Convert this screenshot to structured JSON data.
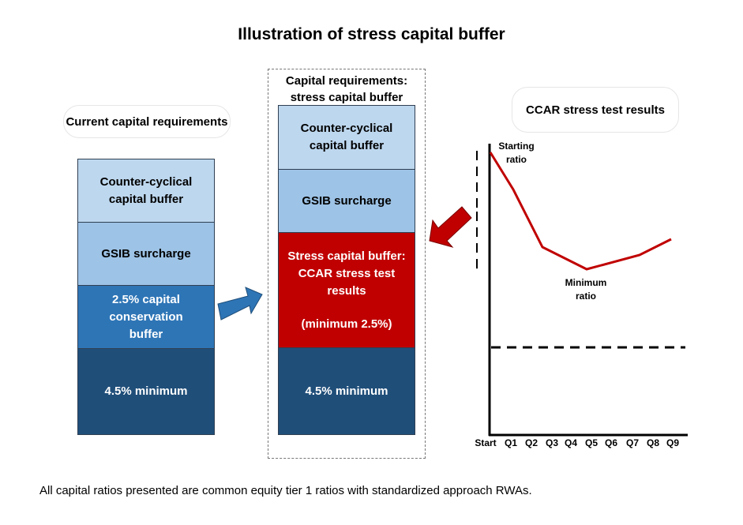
{
  "title": "Illustration of stress capital buffer",
  "current": {
    "heading": "Current capital requirements",
    "layers": [
      "Counter-cyclical capital buffer",
      "GSIB surcharge",
      "2.5% capital conservation buffer",
      "4.5% minimum"
    ]
  },
  "proposed": {
    "heading": "Capital requirements: stress capital buffer",
    "layers": [
      "Counter-cyclical capital buffer",
      "GSIB surcharge",
      "Stress capital buffer: CCAR stress test results",
      "(minimum 2.5%)",
      "4.5% minimum"
    ]
  },
  "ccar": {
    "heading": "CCAR stress test results",
    "starting_label": "Starting ratio",
    "minimum_label": "Minimum ratio",
    "x_ticks": [
      "Start",
      "Q1",
      "Q2",
      "Q3",
      "Q4",
      "Q5",
      "Q6",
      "Q7",
      "Q8",
      "Q9"
    ],
    "line_color": "#c00000"
  },
  "colors": {
    "light_blue": "#bdd7ee",
    "mid_blue": "#9dc3e6",
    "blue": "#2e75b6",
    "dark_blue": "#1f4e79",
    "red": "#c00000"
  },
  "footnote": "All capital ratios presented are common equity tier 1 ratios with standardized approach RWAs."
}
